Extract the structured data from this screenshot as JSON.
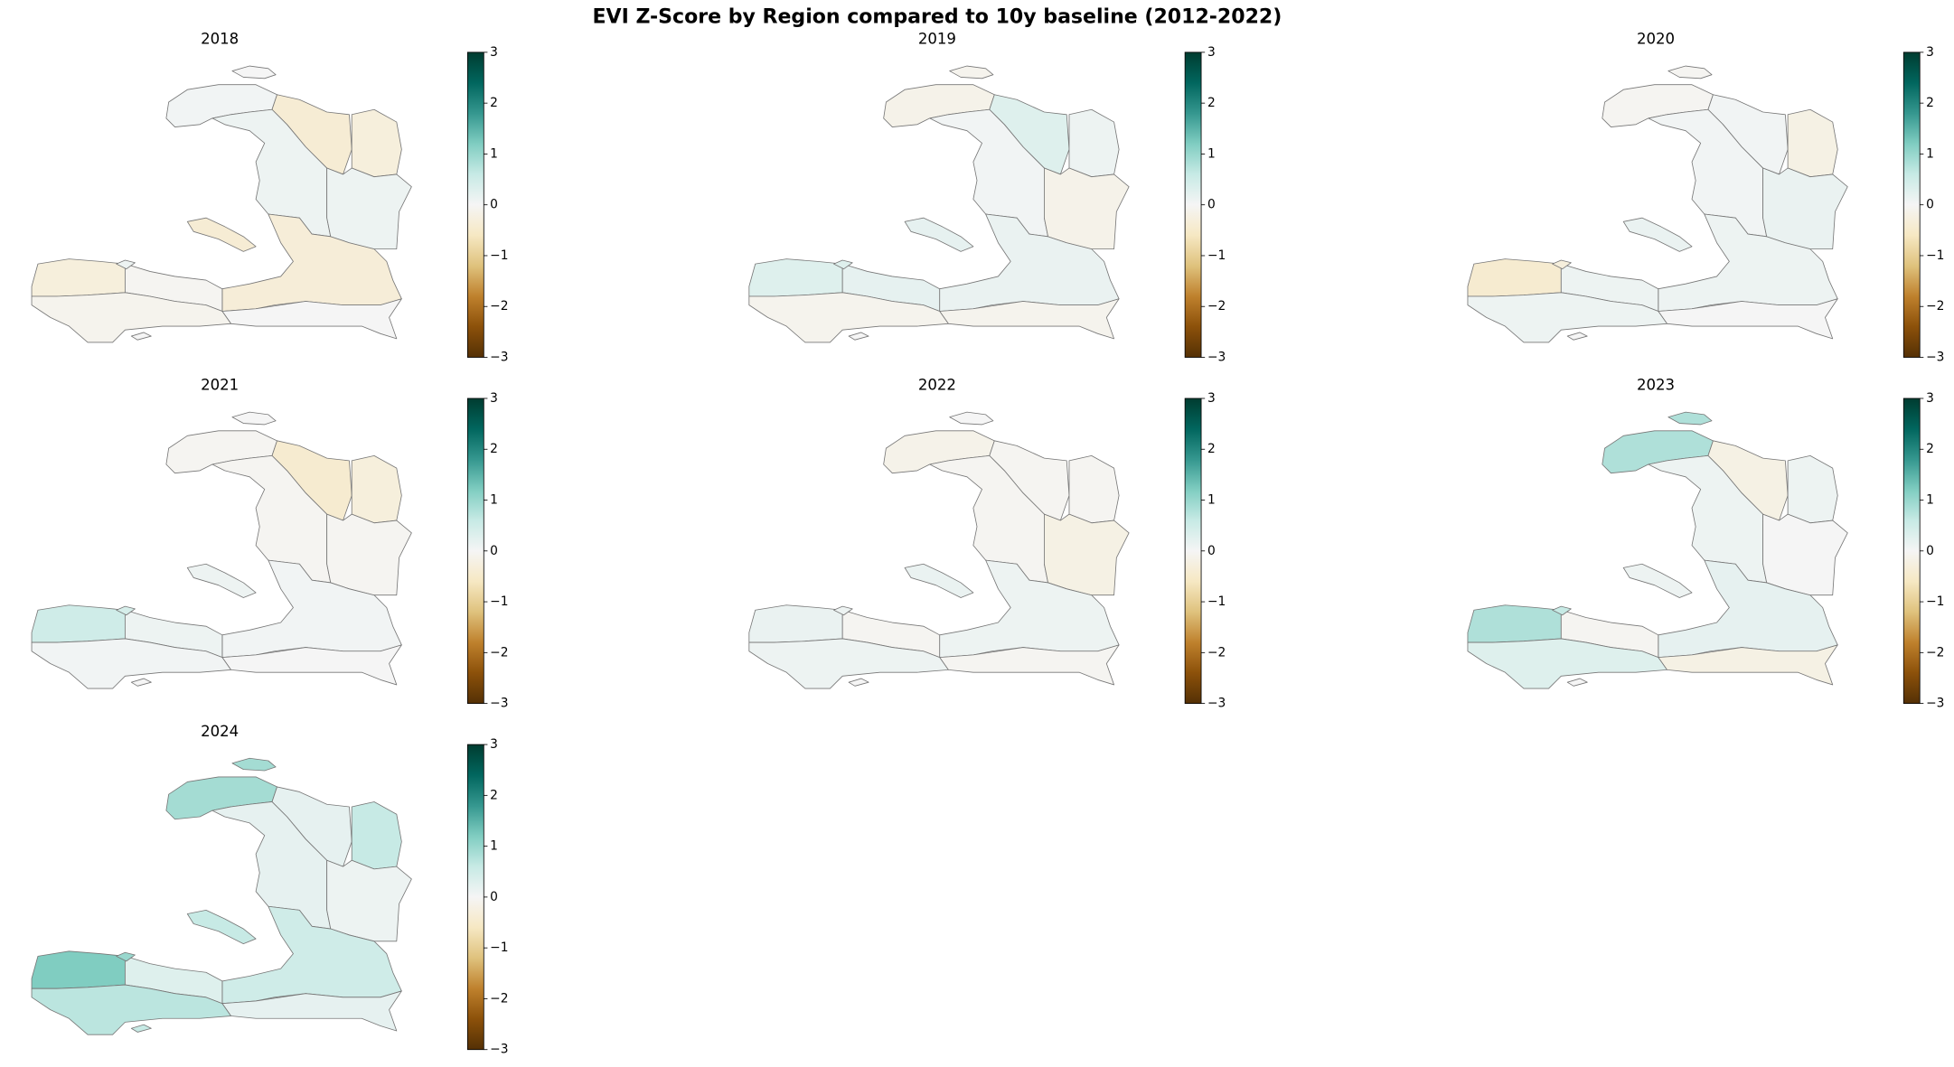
{
  "title": "EVI Z-Score by Region compared to 10y baseline (2012-2022)",
  "chart_data": [
    {
      "type": "choropleth",
      "title": "2018",
      "colormap": "BrBG",
      "clim": [
        -3,
        3
      ],
      "cticks": [
        {
          "value": -3,
          "label": "−3"
        },
        {
          "value": -2,
          "label": "−2"
        },
        {
          "value": -1,
          "label": "−1"
        },
        0,
        1,
        2,
        3
      ],
      "values": [
        0,
        0.05,
        -0.4,
        -0.3,
        0.1,
        0.1,
        -0.4,
        -0.35,
        0,
        -0.3,
        -0.05,
        -0.1,
        0.1,
        0
      ]
    },
    {
      "type": "choropleth",
      "title": "2019",
      "colormap": "BrBG",
      "clim": [
        -3,
        3
      ],
      "cticks": [
        {
          "value": -3,
          "label": "−3"
        },
        {
          "value": -2,
          "label": "−2"
        },
        {
          "value": -1,
          "label": "−1"
        },
        0,
        1,
        2,
        3
      ],
      "values": [
        -0.1,
        -0.15,
        0.3,
        0.1,
        0.05,
        -0.15,
        0.2,
        0.15,
        -0.1,
        0.3,
        0.2,
        -0.1,
        0.3,
        0
      ]
    },
    {
      "type": "choropleth",
      "title": "2020",
      "colormap": "BrBG",
      "clim": [
        -3,
        3
      ],
      "cticks": [
        {
          "value": -3,
          "label": "−3"
        },
        {
          "value": -2,
          "label": "−2"
        },
        {
          "value": -1,
          "label": "−1"
        },
        0,
        1,
        2,
        3
      ],
      "values": [
        -0.05,
        -0.05,
        0.05,
        -0.2,
        0.05,
        0.15,
        0.15,
        0.1,
        0,
        -0.45,
        0.1,
        0.1,
        -0.3,
        0
      ]
    },
    {
      "type": "choropleth",
      "title": "2021",
      "colormap": "BrBG",
      "clim": [
        -3,
        3
      ],
      "cticks": [
        {
          "value": -3,
          "label": "−3"
        },
        {
          "value": -2,
          "label": "−2"
        },
        {
          "value": -1,
          "label": "−1"
        },
        0,
        1,
        2,
        3
      ],
      "values": [
        0,
        -0.05,
        -0.45,
        -0.3,
        -0.05,
        -0.05,
        0.1,
        0.05,
        0,
        0.5,
        0.1,
        0.05,
        0.4,
        0
      ]
    },
    {
      "type": "choropleth",
      "title": "2022",
      "colormap": "BrBG",
      "clim": [
        -3,
        3
      ],
      "cticks": [
        {
          "value": -3,
          "label": "−3"
        },
        {
          "value": -2,
          "label": "−2"
        },
        {
          "value": -1,
          "label": "−1"
        },
        0,
        1,
        2,
        3
      ],
      "values": [
        0,
        -0.15,
        -0.05,
        -0.05,
        -0.05,
        -0.2,
        0.15,
        0.1,
        -0.05,
        0.15,
        -0.05,
        0.1,
        0.1,
        0
      ]
    },
    {
      "type": "choropleth",
      "title": "2023",
      "colormap": "BrBG",
      "clim": [
        -3,
        3
      ],
      "cticks": [
        {
          "value": -3,
          "label": "−3"
        },
        {
          "value": -2,
          "label": "−2"
        },
        {
          "value": -1,
          "label": "−1"
        },
        0,
        1,
        2,
        3
      ],
      "values": [
        0.8,
        0.8,
        -0.2,
        0.1,
        0.1,
        0,
        0.1,
        0.2,
        -0.2,
        0.8,
        -0.05,
        0.3,
        0.6,
        0
      ]
    },
    {
      "type": "choropleth",
      "title": "2024",
      "colormap": "BrBG",
      "clim": [
        -3,
        3
      ],
      "cticks": [
        {
          "value": -3,
          "label": "−3"
        },
        {
          "value": -2,
          "label": "−2"
        },
        {
          "value": -1,
          "label": "−1"
        },
        0,
        1,
        2,
        3
      ],
      "values": [
        0.9,
        0.9,
        0.2,
        0.6,
        0.2,
        0.1,
        0.6,
        0.5,
        0.2,
        1.2,
        0.3,
        0.7,
        1.0,
        0.6
      ]
    }
  ]
}
